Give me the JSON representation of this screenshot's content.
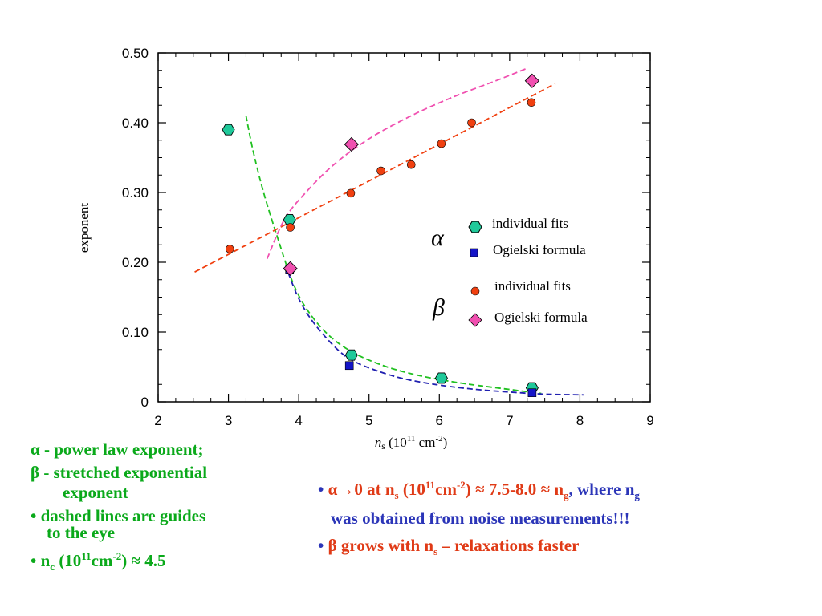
{
  "chart_data": {
    "type": "scatter",
    "xlabel_var": "n",
    "xlabel_sub": "s",
    "xlabel_unit_pre": " (10",
    "xlabel_unit_exp": "11",
    "xlabel_unit_mid": " cm",
    "xlabel_unit_exp2": "-2",
    "xlabel_unit_post": ")",
    "ylabel": "exponent",
    "xlim": [
      2,
      9
    ],
    "ylim": [
      0,
      0.5
    ],
    "xticks": [
      "2",
      "3",
      "4",
      "5",
      "6",
      "7",
      "8",
      "9"
    ],
    "yticks": [
      "0",
      "0.10",
      "0.20",
      "0.30",
      "0.40",
      "0.50"
    ],
    "series": [
      {
        "name": "individual fits",
        "group": "α",
        "marker": "hexagon",
        "color": "#1fc99a",
        "x": [
          3.0,
          3.87,
          4.75,
          6.03,
          7.32
        ],
        "y": [
          0.39,
          0.261,
          0.067,
          0.034,
          0.02
        ]
      },
      {
        "name": "Ogielski formula",
        "group": "α",
        "marker": "square",
        "color": "#1414c8",
        "x": [
          3.87,
          4.72,
          7.32
        ],
        "y": [
          0.19,
          0.052,
          0.013
        ]
      },
      {
        "name": "individual fits",
        "group": "β",
        "marker": "circle",
        "color": "#f04010",
        "x": [
          3.02,
          3.88,
          4.74,
          5.17,
          5.6,
          6.03,
          6.46,
          7.31
        ],
        "y": [
          0.219,
          0.25,
          0.299,
          0.331,
          0.34,
          0.37,
          0.4,
          0.429
        ]
      },
      {
        "name": "Ogielski formula",
        "group": "β",
        "marker": "diamond",
        "color": "#f050b0",
        "x": [
          3.88,
          4.75,
          7.32
        ],
        "y": [
          0.191,
          0.369,
          0.46
        ]
      }
    ],
    "guides": [
      {
        "color": "#20c020",
        "x": [
          3.25,
          3.35,
          3.5,
          3.7,
          3.9,
          4.1,
          4.4,
          4.75,
          5.2,
          5.7,
          6.3,
          6.9,
          7.45
        ],
        "y": [
          0.41,
          0.36,
          0.3,
          0.235,
          0.175,
          0.135,
          0.098,
          0.072,
          0.052,
          0.038,
          0.027,
          0.019,
          0.012
        ]
      },
      {
        "color": "#2020b0",
        "x": [
          3.85,
          4.0,
          4.2,
          4.5,
          4.75,
          5.1,
          5.5,
          6.0,
          6.5,
          7.0,
          7.5,
          8.05
        ],
        "y": [
          0.185,
          0.148,
          0.115,
          0.08,
          0.06,
          0.045,
          0.033,
          0.024,
          0.018,
          0.014,
          0.011,
          0.01
        ]
      },
      {
        "color": "#f04010",
        "x": [
          2.52,
          7.65
        ],
        "y": [
          0.186,
          0.456
        ]
      },
      {
        "color": "#f050b0",
        "x": [
          3.55,
          3.8,
          4.1,
          4.5,
          5.0,
          5.6,
          6.2,
          6.8,
          7.25
        ],
        "y": [
          0.205,
          0.262,
          0.3,
          0.34,
          0.377,
          0.41,
          0.437,
          0.46,
          0.478
        ]
      }
    ],
    "legend": {
      "alpha_symbol": "α",
      "beta_symbol": "β",
      "alpha_fit": "individual fits",
      "alpha_ogielski": "Ogielski formula",
      "beta_fit": "individual fits",
      "beta_ogielski": "Ogielski formula"
    }
  },
  "notes_left": {
    "line1": "α - power law exponent;",
    "line2": "β - stretched exponential",
    "line3": "exponent",
    "line4": "• dashed lines are guides",
    "line5": "to the eye",
    "line6_pre": "• n",
    "line6_sub": "c",
    "line6_mid": " (10",
    "line6_sup": "11",
    "line6_cm": "cm",
    "line6_sup2": "-2",
    "line6_post": ") ≈ 4.5"
  },
  "notes_right": {
    "b1_bullet": "• ",
    "b1_red_pre": "α→0 at n",
    "b1_red_sub": "s",
    "b1_red_mid": " (10",
    "b1_red_sup": "11",
    "b1_red_cm": "cm",
    "b1_red_sup2": "-2",
    "b1_red_post": ") ≈ 7.5-8.0 ≈ n",
    "b1_red_sub2": "g",
    "b1_blue_pre": ", where n",
    "b1_blue_sub": "g",
    "b1_line2": "was obtained from noise measurements!!!",
    "b2_bullet": "• ",
    "b2_red_pre": "β grows with n",
    "b2_red_sub": "s",
    "b2_red_post": " – relaxations faster"
  }
}
